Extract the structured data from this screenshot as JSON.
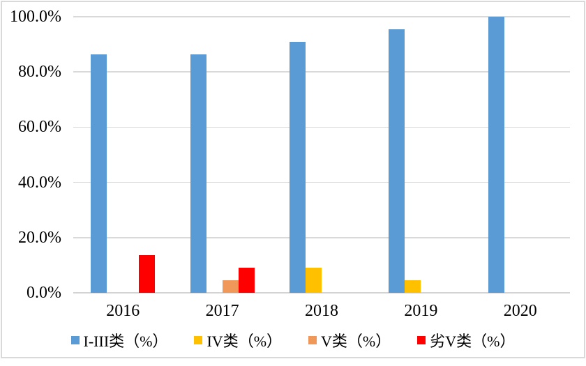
{
  "chart_data": {
    "type": "bar",
    "categories": [
      "2016",
      "2017",
      "2018",
      "2019",
      "2020"
    ],
    "series": [
      {
        "name": "I-III类（%）",
        "color": "#5B9BD5",
        "values": [
          86.4,
          86.4,
          90.9,
          95.5,
          100.0
        ]
      },
      {
        "name": "IV类（%）",
        "color": "#FFC000",
        "values": [
          0.0,
          0.0,
          9.1,
          4.5,
          0.0
        ]
      },
      {
        "name": "V类（%）",
        "color": "#F0975A",
        "values": [
          0.0,
          4.5,
          0.0,
          0.0,
          0.0
        ]
      },
      {
        "name": "劣V类（%）",
        "color": "#FF0000",
        "values": [
          13.6,
          9.1,
          0.0,
          0.0,
          0.0
        ]
      }
    ],
    "title": "",
    "xlabel": "",
    "ylabel": "",
    "ylim": [
      0,
      100
    ],
    "ytick_interval": 20,
    "ytick_labels": [
      "0.0%",
      "20.0%",
      "40.0%",
      "60.0%",
      "80.0%",
      "100.0%"
    ],
    "grid": "horizontal",
    "legend_position": "bottom",
    "bar_layout": "grouped"
  },
  "colors": {
    "background": "#FFFFFF",
    "gridline": "#D9D9D9",
    "frame_border": "#D9D9D9",
    "text": "#000000"
  }
}
